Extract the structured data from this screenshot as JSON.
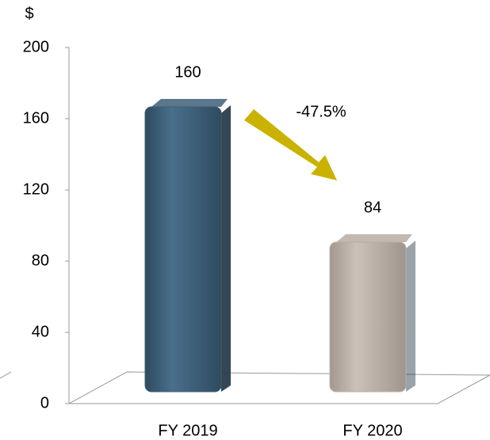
{
  "chart_data": {
    "type": "bar",
    "y_axis_label": "$",
    "categories": [
      "FY 2019",
      "FY 2020"
    ],
    "values": [
      160,
      84
    ],
    "colors": [
      "#3d5f78",
      "#b8ada3"
    ],
    "annotation": "-47.5%",
    "ylim": [
      0,
      200
    ],
    "yticks": [
      0,
      40,
      80,
      120,
      160,
      200
    ]
  }
}
